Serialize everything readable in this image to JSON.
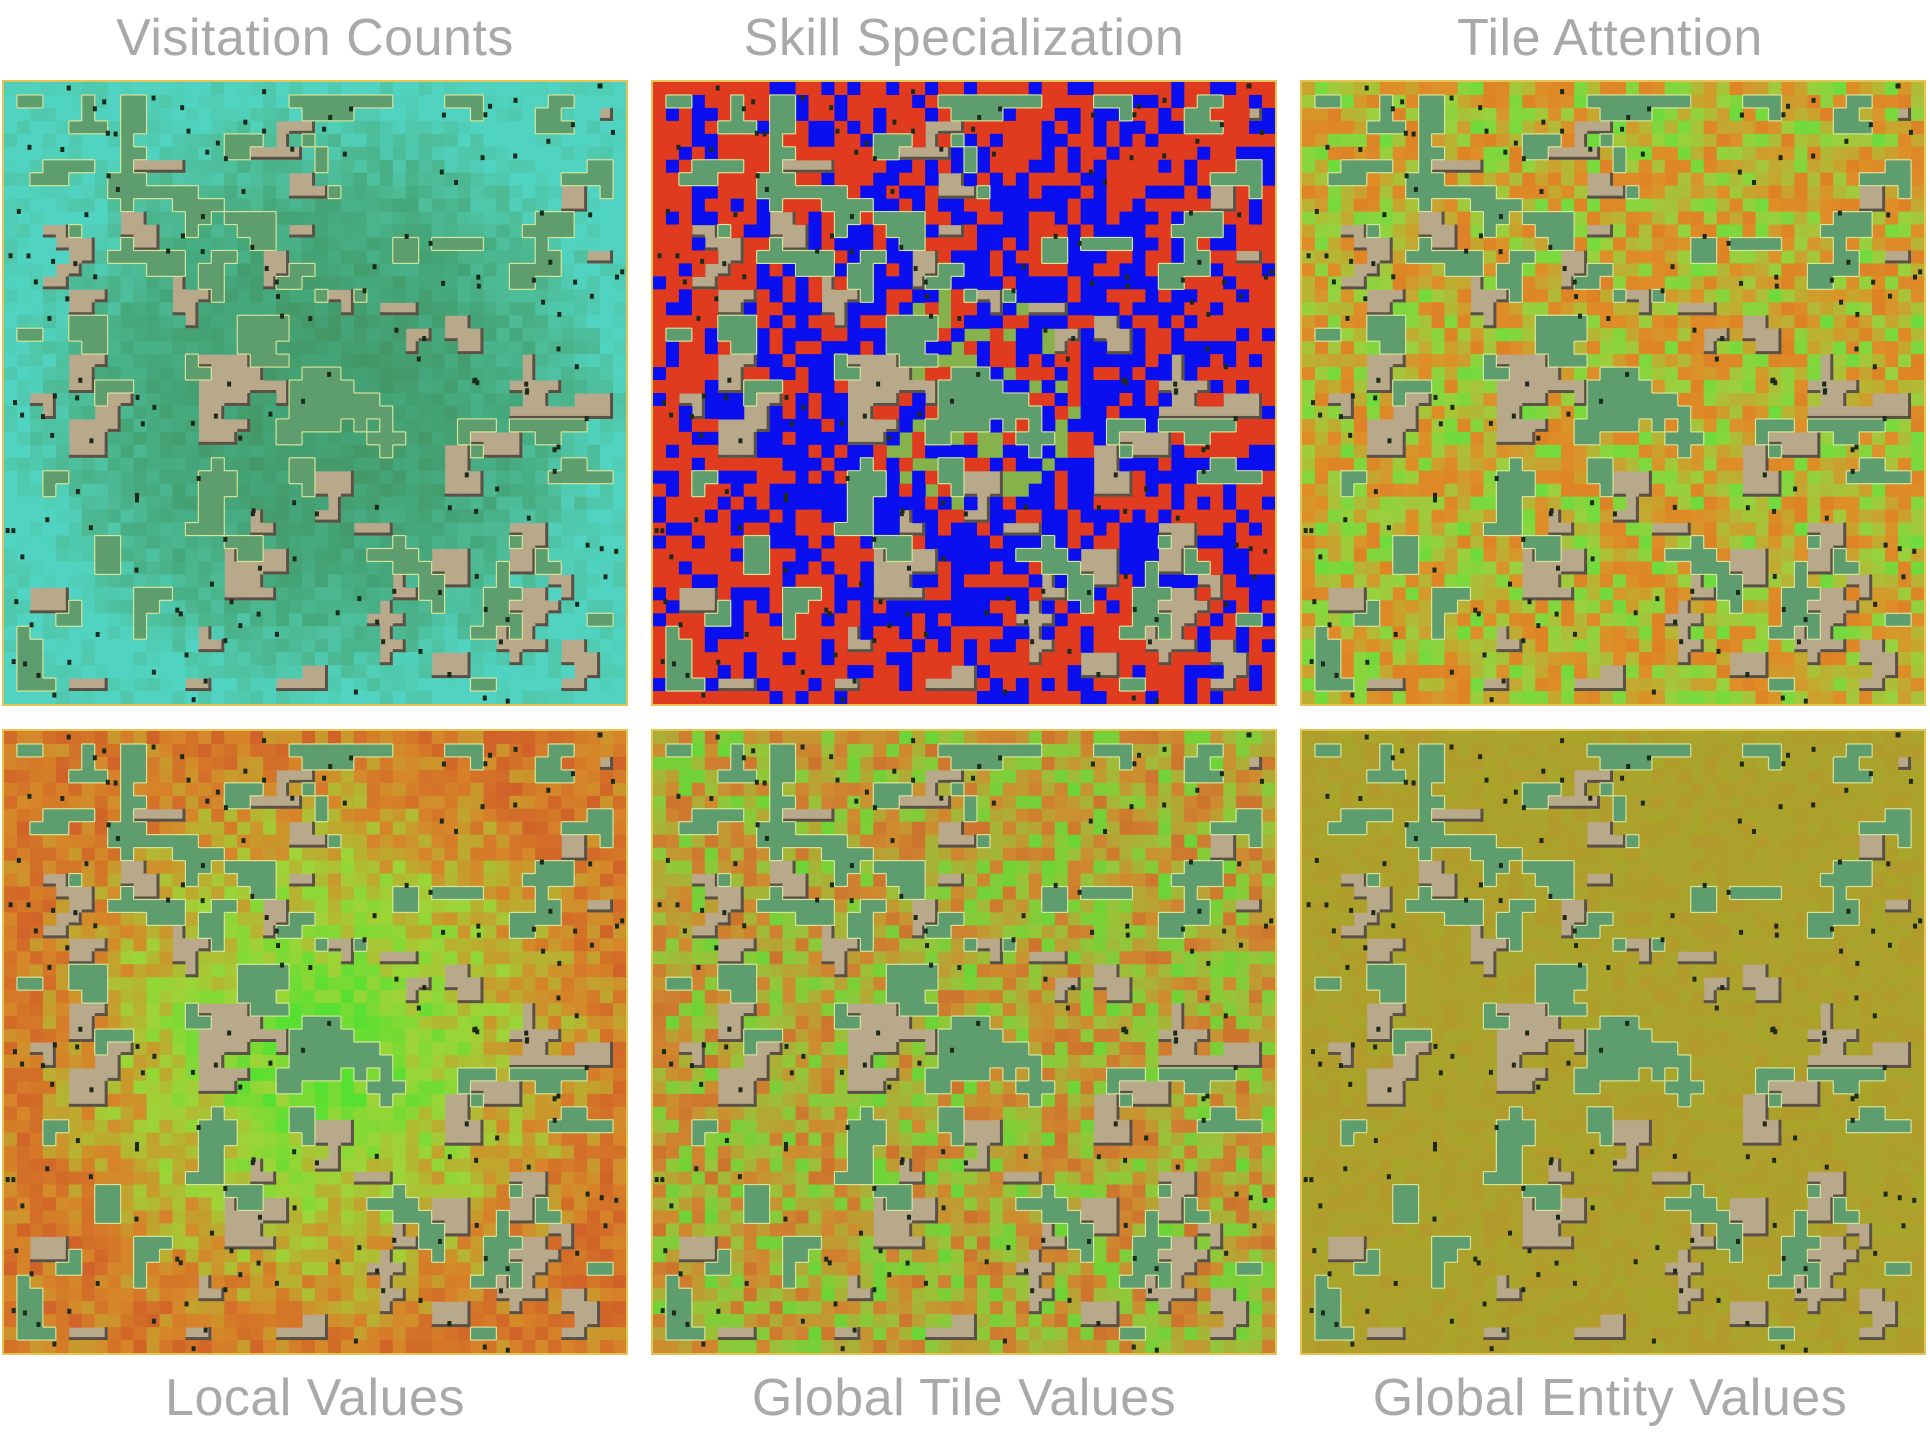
{
  "figure": {
    "panels": [
      {
        "id": "visitation",
        "title": "Visitation Counts",
        "title_position": "top",
        "overlay": {
          "type": "scalar",
          "colors": [
            "#2f8f6f",
            "#2fa38a",
            "#3bbfb0",
            "#3fe0e8"
          ],
          "alpha": 0.75,
          "center_bias": "low",
          "edge_bias": "high"
        }
      },
      {
        "id": "skill",
        "title": "Skill Specialization",
        "title_position": "top",
        "overlay": {
          "type": "categorical",
          "colors": [
            "#e03b1f",
            "#0a0ff0"
          ],
          "alpha": 1.0
        }
      },
      {
        "id": "tile-attention",
        "title": "Tile Attention",
        "title_position": "top",
        "overlay": {
          "type": "scalar",
          "colors": [
            "#f26a1b",
            "#f5861f",
            "#9fd83a",
            "#3ef23a"
          ],
          "alpha": 0.8,
          "center_bias": "none",
          "edge_bias": "none"
        }
      },
      {
        "id": "local-values",
        "title": "Local Values",
        "title_position": "bottom",
        "overlay": {
          "type": "scalar",
          "colors": [
            "#e8381c",
            "#f2781e",
            "#a6e030",
            "#46f02a"
          ],
          "alpha": 0.75,
          "center_bias": "high",
          "edge_bias": "low"
        }
      },
      {
        "id": "global-tile-values",
        "title": "Global Tile Values",
        "title_position": "bottom",
        "overlay": {
          "type": "scalar",
          "colors": [
            "#e8401e",
            "#f07a24",
            "#9ccf32",
            "#2ef52a"
          ],
          "alpha": 0.7,
          "center_bias": "none",
          "edge_bias": "none"
        }
      },
      {
        "id": "global-entity-values",
        "title": "Global Entity Values",
        "title_position": "bottom",
        "overlay": {
          "type": "scalar",
          "colors": [
            "#b8a21a",
            "#c19a1a",
            "#cf8a1c"
          ],
          "alpha": 0.65,
          "center_bias": "none",
          "edge_bias": "none"
        }
      }
    ],
    "map_colors": {
      "grass": "#86b24c",
      "forest": "#5e9d6e",
      "forest_edge": "#d6e49a",
      "stone": "#b8a98a",
      "stone_shadow": "#5a5046",
      "entity": "#1c2a1c"
    }
  }
}
